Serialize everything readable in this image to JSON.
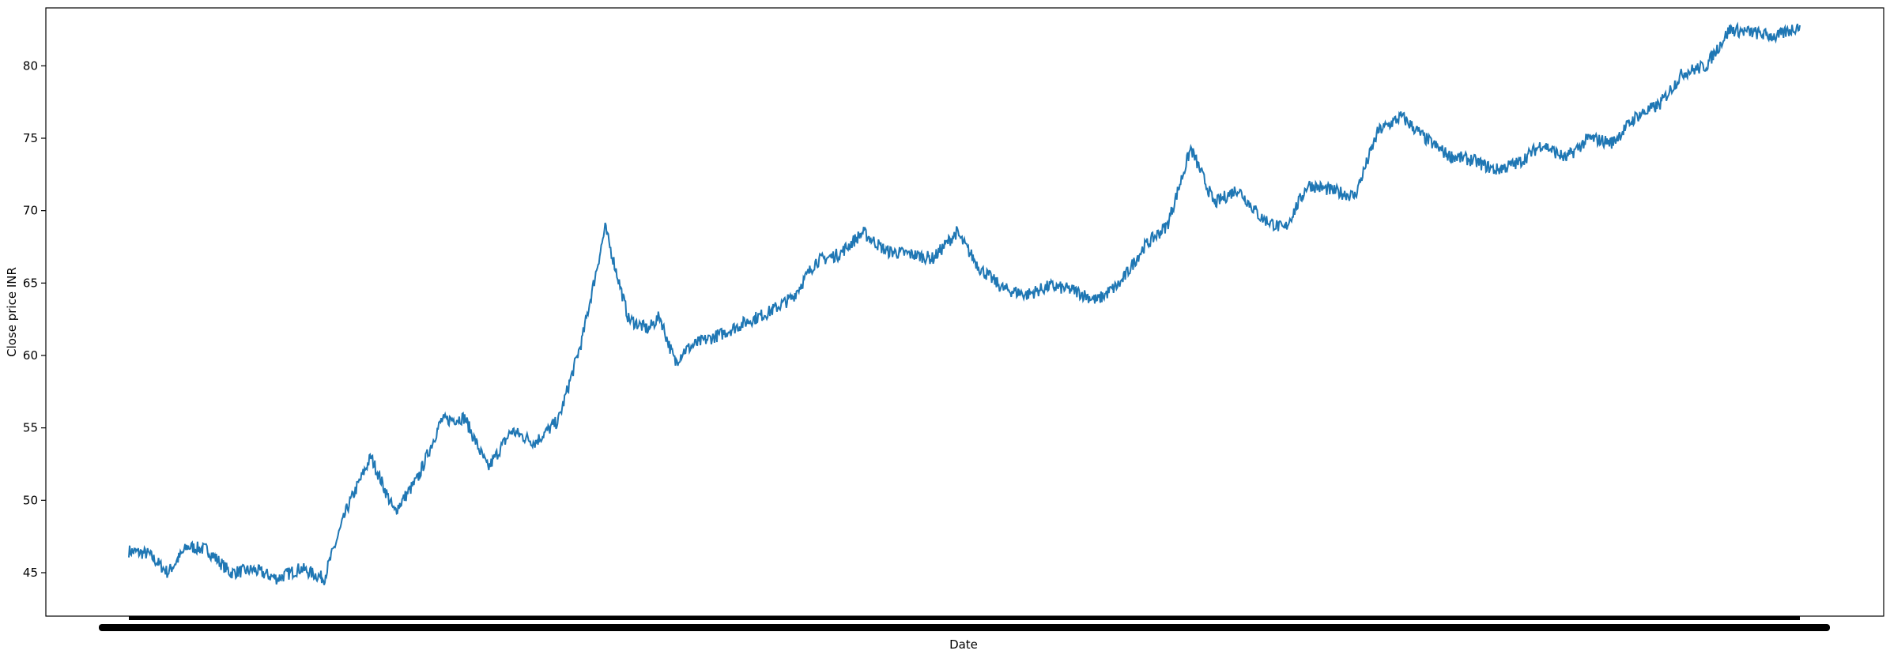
{
  "chart_data": {
    "type": "line",
    "title": "",
    "xlabel": "Date",
    "ylabel": "Close price INR",
    "ylim": [
      42.0,
      84.0
    ],
    "yticks": [
      45,
      50,
      55,
      60,
      65,
      70,
      75,
      80
    ],
    "xtick_labels_note": "dense, overlapping date labels rendered as a solid band",
    "grid": false,
    "legend": "none",
    "line_color": "#1f77b4",
    "series": [
      {
        "x_index": [
          0,
          25,
          50,
          75,
          100,
          130,
          160,
          190,
          220,
          250,
          280,
          310,
          340,
          370,
          400,
          430,
          460,
          490,
          520,
          550,
          580,
          610,
          640,
          665,
          680,
          690,
          700,
          710,
          730,
          760,
          790,
          820,
          850,
          880,
          910,
          940,
          970,
          1000,
          1030,
          1060,
          1090,
          1120,
          1150,
          1180,
          1210,
          1240,
          1270,
          1300,
          1330,
          1360,
          1390,
          1420,
          1450,
          1480,
          1510,
          1540,
          1570,
          1600,
          1630,
          1660,
          1690,
          1720,
          1750,
          1780,
          1810,
          1840,
          1870,
          1900,
          1930,
          1960,
          1990,
          2020,
          2050,
          2080,
          2110,
          2140
        ],
        "values": [
          46.5,
          46.3,
          45.0,
          46.8,
          46.6,
          45.0,
          45.2,
          44.6,
          45.3,
          44.6,
          49.5,
          53.0,
          49.2,
          51.5,
          55.5,
          55.7,
          52.2,
          54.8,
          54.0,
          55.5,
          61.0,
          68.8,
          62.5,
          61.8,
          62.7,
          61.0,
          59.5,
          60.3,
          60.9,
          61.5,
          62.3,
          63.0,
          64.0,
          66.5,
          67.0,
          68.5,
          67.2,
          67.0,
          66.7,
          68.5,
          66.0,
          64.6,
          64.2,
          64.8,
          64.5,
          63.8,
          65.0,
          67.5,
          69.0,
          74.3,
          70.5,
          71.5,
          69.5,
          68.7,
          71.8,
          71.4,
          71.0,
          75.5,
          76.5,
          75.0,
          73.8,
          73.5,
          72.8,
          73.3,
          74.6,
          73.6,
          75.0,
          74.7,
          76.5,
          77.3,
          79.5,
          80.0,
          82.5,
          82.3,
          82.0,
          82.8
        ]
      }
    ]
  }
}
